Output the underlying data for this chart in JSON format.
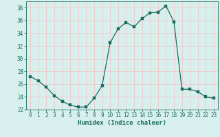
{
  "x": [
    0,
    1,
    2,
    3,
    4,
    5,
    6,
    7,
    8,
    9,
    10,
    11,
    12,
    13,
    14,
    15,
    16,
    17,
    18,
    19,
    20,
    21,
    22,
    23
  ],
  "y": [
    27.2,
    26.5,
    25.5,
    24.2,
    23.3,
    22.7,
    22.4,
    22.4,
    23.8,
    25.8,
    32.5,
    34.7,
    35.7,
    35.0,
    36.3,
    37.2,
    37.3,
    38.3,
    35.8,
    25.2,
    25.2,
    24.8,
    24.0,
    23.8
  ],
  "line_color": "#1a6b5e",
  "marker": "s",
  "marker_size": 2.2,
  "bg_color": "#d8f0ed",
  "grid_color": "#f0c8c8",
  "xlabel": "Humidex (Indice chaleur)",
  "ylim": [
    22,
    39
  ],
  "xlim": [
    -0.5,
    23.5
  ],
  "yticks": [
    22,
    24,
    26,
    28,
    30,
    32,
    34,
    36,
    38
  ],
  "xticks": [
    0,
    1,
    2,
    3,
    4,
    5,
    6,
    7,
    8,
    9,
    10,
    11,
    12,
    13,
    14,
    15,
    16,
    17,
    18,
    19,
    20,
    21,
    22,
    23
  ],
  "label_fontsize": 6.5,
  "tick_fontsize": 5.5
}
